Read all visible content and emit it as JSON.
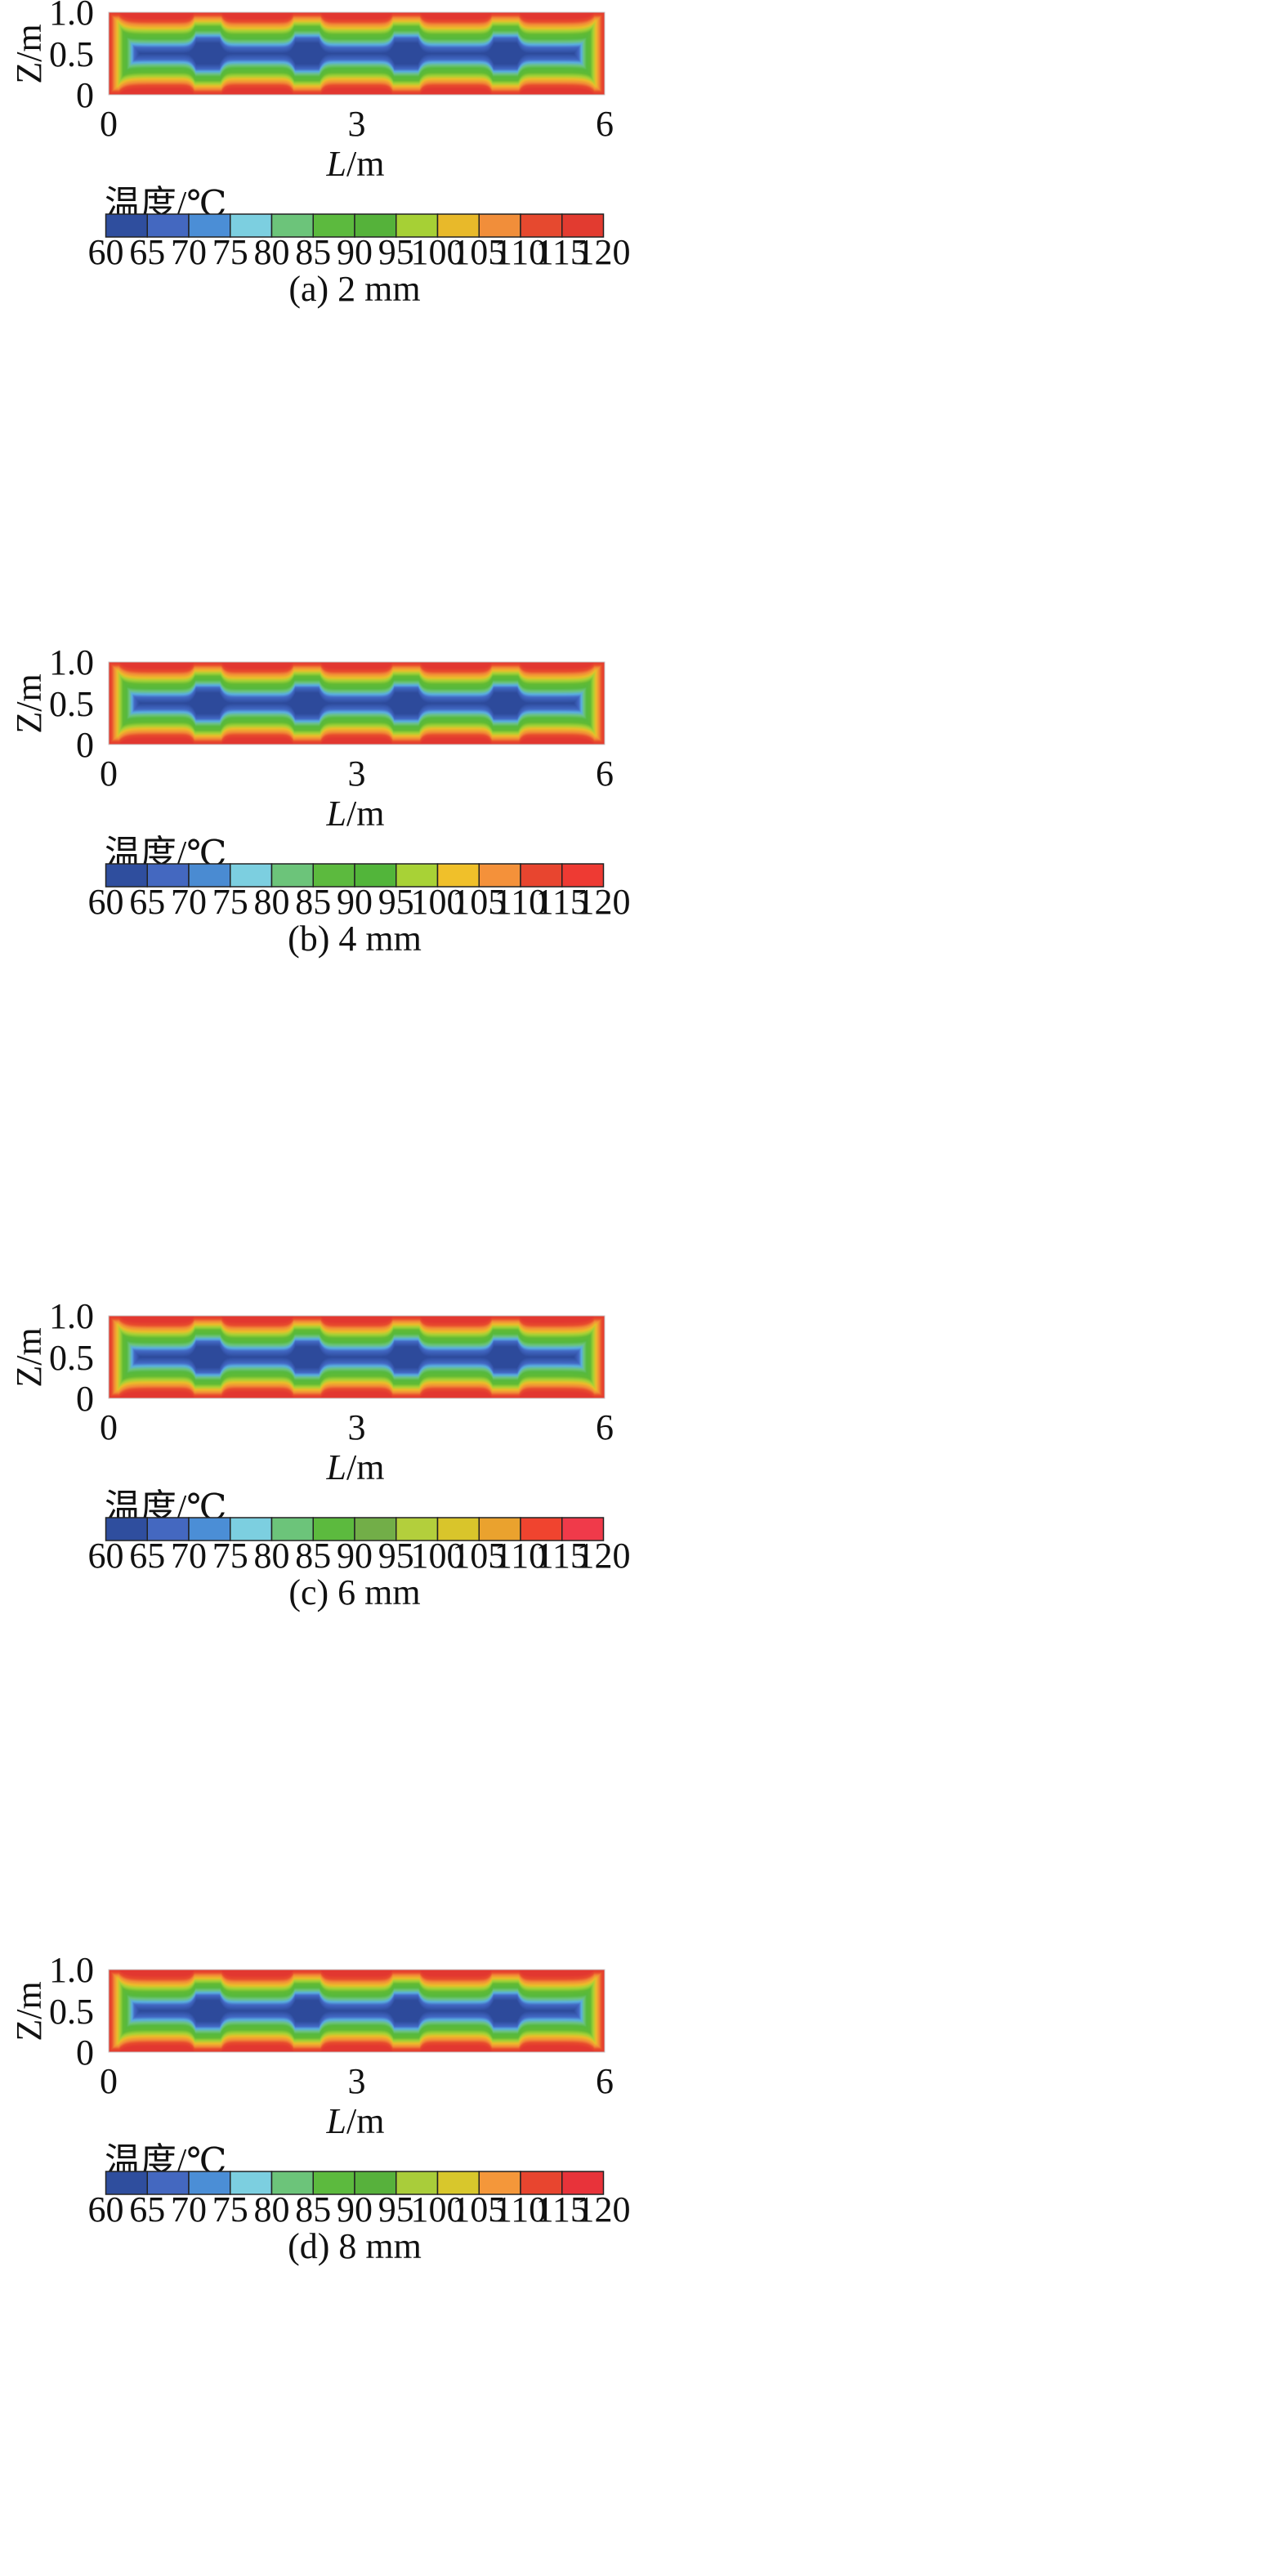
{
  "figure": {
    "colorbar_title": "温度/℃",
    "colorbar_ticks": [
      60,
      65,
      70,
      75,
      80,
      85,
      90,
      95,
      100,
      105,
      110,
      115,
      120
    ]
  },
  "chart_data": [
    {
      "type": "heatmap",
      "caption": "(a) 2 mm",
      "xlabel": "L/m",
      "ylabel": "Z/m",
      "xlim": [
        0,
        6
      ],
      "ylim": [
        0,
        1.0
      ],
      "xticks": [
        "0",
        "3",
        "6"
      ],
      "yticks": [
        "0",
        "0.5",
        "1.0"
      ],
      "cold_centers_x": [
        1.2,
        2.4,
        3.6,
        4.8
      ],
      "value_range": [
        60,
        120
      ],
      "colorbar_colors": [
        "#2f4e9e",
        "#4468c0",
        "#4b8ed6",
        "#7ccfe0",
        "#6cc47a",
        "#5cba3e",
        "#55b23a",
        "#a6d035",
        "#e8b92a",
        "#f18e3a",
        "#e6492f",
        "#e23b30"
      ]
    },
    {
      "type": "heatmap",
      "caption": "(b) 4 mm",
      "xlabel": "L/m",
      "ylabel": "Z/m",
      "xlim": [
        0,
        6
      ],
      "ylim": [
        0,
        1.0
      ],
      "xticks": [
        "0",
        "3",
        "6"
      ],
      "yticks": [
        "0",
        "0.5",
        "1.0"
      ],
      "cold_centers_x": [
        1.2,
        2.4,
        3.6,
        4.8
      ],
      "value_range": [
        60,
        120
      ],
      "colorbar_colors": [
        "#2f4e9e",
        "#4468c0",
        "#4a8bd2",
        "#7ccfe0",
        "#6cc47a",
        "#5cba3e",
        "#52b53a",
        "#a8d236",
        "#f0c02a",
        "#f4913a",
        "#e8452f",
        "#ee3a33"
      ]
    },
    {
      "type": "heatmap",
      "caption": "(c) 6 mm",
      "xlabel": "L/m",
      "ylabel": "Z/m",
      "xlim": [
        0,
        6
      ],
      "ylim": [
        0,
        1.0
      ],
      "xticks": [
        "0",
        "3",
        "6"
      ],
      "yticks": [
        "0",
        "0.5",
        "1.0"
      ],
      "cold_centers_x": [
        1.2,
        2.4,
        3.6,
        4.8
      ],
      "value_range": [
        60,
        120
      ],
      "colorbar_colors": [
        "#2f4e9e",
        "#4468c0",
        "#4b8ed6",
        "#7ccfe0",
        "#6cc47a",
        "#5cba3e",
        "#72ae48",
        "#b3cf3c",
        "#d9c52b",
        "#eaa22e",
        "#f0442f",
        "#f03a4a"
      ]
    },
    {
      "type": "heatmap",
      "caption": "(d) 8 mm",
      "xlabel": "L/m",
      "ylabel": "Z/m",
      "xlim": [
        0,
        6
      ],
      "ylim": [
        0,
        1.0
      ],
      "xticks": [
        "0",
        "3",
        "6"
      ],
      "yticks": [
        "0",
        "0.5",
        "1.0"
      ],
      "cold_centers_x": [
        1.2,
        2.4,
        3.6,
        4.8
      ],
      "value_range": [
        60,
        120
      ],
      "colorbar_colors": [
        "#2f4e9e",
        "#4468c0",
        "#4b8ed6",
        "#7ccfe0",
        "#6cc47a",
        "#5cba3e",
        "#57b13c",
        "#a9cd3a",
        "#d8c72c",
        "#f4973a",
        "#e8452f",
        "#e8333a"
      ]
    }
  ]
}
